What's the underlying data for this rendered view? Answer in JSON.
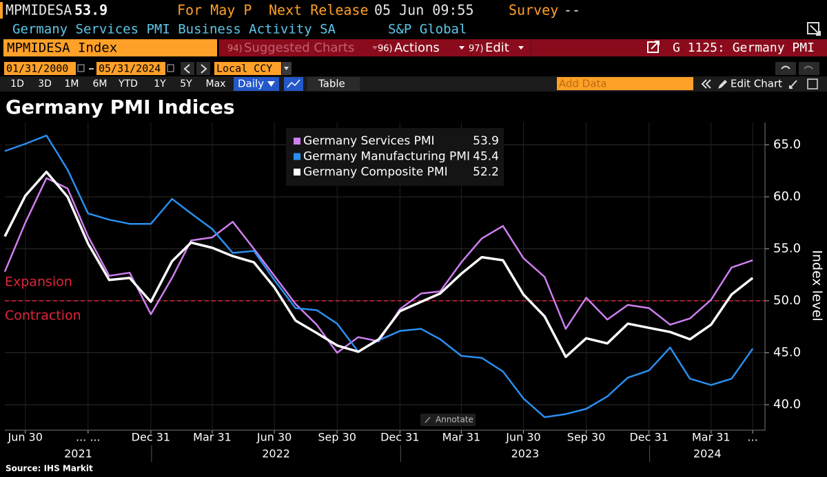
{
  "header": {
    "ticker": "MPMIDESA",
    "last": "53.9",
    "period_label": "For May P",
    "next_release_label": "Next Release",
    "next_release": "05 Jun 09:55",
    "survey_label": "Survey",
    "survey": "--",
    "description": "Germany Services PMI Business Activity SA",
    "source": "S&P Global"
  },
  "toolbar": {
    "security": "MPMIDESA Index",
    "menus": [
      {
        "num": "94)",
        "label": "Suggested Charts"
      },
      {
        "num": "96)",
        "label": "Actions"
      },
      {
        "num": "97)",
        "label": "Edit"
      }
    ],
    "function": "G 1125: Germany PMI"
  },
  "controls": {
    "start_date": "01/31/2000",
    "end_date": "05/31/2024",
    "currency": "Local CCY",
    "periods": [
      "1D",
      "3D",
      "1M",
      "6M",
      "YTD",
      "1Y",
      "5Y",
      "Max"
    ],
    "frequency": "Daily",
    "table": "Table",
    "add_data": "Add Data",
    "edit_chart": "Edit Chart"
  },
  "chart_data": {
    "type": "line",
    "title": "Germany PMI Indices",
    "y_label": "Index level",
    "x": [
      "2021-05-31",
      "2021-06-30",
      "2021-07-31",
      "2021-08-31",
      "2021-09-30",
      "2021-10-31",
      "2021-11-30",
      "2021-12-31",
      "2022-01-31",
      "2022-02-28",
      "2022-03-31",
      "2022-04-30",
      "2022-05-31",
      "2022-06-30",
      "2022-07-31",
      "2022-08-31",
      "2022-09-30",
      "2022-10-31",
      "2022-11-30",
      "2022-12-31",
      "2023-01-31",
      "2023-02-28",
      "2023-03-31",
      "2023-04-30",
      "2023-05-31",
      "2023-06-30",
      "2023-07-31",
      "2023-08-31",
      "2023-09-30",
      "2023-10-31",
      "2023-11-30",
      "2023-12-31",
      "2024-01-31",
      "2024-02-29",
      "2024-03-31",
      "2024-04-30",
      "2024-05-31"
    ],
    "series": [
      {
        "name": "Germany Services PMI",
        "color": "#cf7ff0",
        "values": [
          52.8,
          57.5,
          61.8,
          60.8,
          56.2,
          52.4,
          52.7,
          48.7,
          52.2,
          55.8,
          56.1,
          57.6,
          55.0,
          52.4,
          49.7,
          47.7,
          45.0,
          46.5,
          46.1,
          49.2,
          50.7,
          50.9,
          53.7,
          56.0,
          57.2,
          54.1,
          52.3,
          47.3,
          50.3,
          48.2,
          49.6,
          49.3,
          47.7,
          48.3,
          50.1,
          53.2,
          53.9
        ]
      },
      {
        "name": "Germany Manufacturing PMI",
        "color": "#2a8ff0",
        "values": [
          64.4,
          65.1,
          65.9,
          62.6,
          58.4,
          57.8,
          57.4,
          57.4,
          59.8,
          58.4,
          56.9,
          54.6,
          54.8,
          52.0,
          49.3,
          49.1,
          47.8,
          45.1,
          46.2,
          47.1,
          47.3,
          46.3,
          44.7,
          44.5,
          43.2,
          40.6,
          38.8,
          39.1,
          39.6,
          40.8,
          42.6,
          43.3,
          45.5,
          42.5,
          41.9,
          42.5,
          45.4
        ]
      },
      {
        "name": "Germany Composite PMI",
        "color": "#ffffff",
        "values": [
          56.2,
          60.1,
          62.4,
          60.0,
          55.5,
          52.0,
          52.2,
          49.9,
          53.8,
          55.6,
          55.1,
          54.3,
          53.7,
          51.3,
          48.1,
          46.9,
          45.7,
          45.1,
          46.3,
          49.0,
          49.9,
          50.7,
          52.6,
          54.2,
          53.9,
          50.6,
          48.5,
          44.6,
          46.4,
          45.9,
          47.8,
          47.4,
          47.0,
          46.3,
          47.7,
          50.6,
          52.2
        ]
      }
    ],
    "xlim": [
      "2021-05-31",
      "2024-06-18"
    ],
    "xticks": [
      {
        "value": "2021-06-30",
        "label": "Jun 30"
      },
      {
        "value": "2021-09-30",
        "label": "... ..."
      },
      {
        "value": "2021-12-31",
        "label": "Dec 31"
      },
      {
        "value": "2022-03-31",
        "label": "Mar 31"
      },
      {
        "value": "2022-06-30",
        "label": "Jun 30"
      },
      {
        "value": "2022-09-30",
        "label": "Sep 30"
      },
      {
        "value": "2022-12-31",
        "label": "Dec 31"
      },
      {
        "value": "2023-03-31",
        "label": "Mar 31"
      },
      {
        "value": "2023-06-30",
        "label": "Jun 30"
      },
      {
        "value": "2023-09-30",
        "label": "Sep 30"
      },
      {
        "value": "2023-12-31",
        "label": "Dec 31"
      },
      {
        "value": "2024-03-31",
        "label": "Mar 31"
      },
      {
        "value": "2024-05-31",
        "label": "..."
      }
    ],
    "year_labels": [
      2021,
      2022,
      2023,
      2024
    ],
    "ylim": [
      37.55,
      67.15
    ],
    "yticks": [
      {
        "value": 40,
        "label": "40.0"
      },
      {
        "value": 45,
        "label": "45.0"
      },
      {
        "value": 50,
        "label": "50.0"
      },
      {
        "value": 55,
        "label": "55.0"
      },
      {
        "value": 60,
        "label": "60.0"
      },
      {
        "value": 65,
        "label": "65.0"
      }
    ],
    "grid": true,
    "reference_line": {
      "value": 50,
      "color": "#e0263b"
    },
    "annotations": {
      "above": "Expansion",
      "below": "Contraction"
    },
    "legend_position": "top"
  },
  "footer": {
    "annotate": "Annotate",
    "source": "Source: IHS Markit"
  }
}
